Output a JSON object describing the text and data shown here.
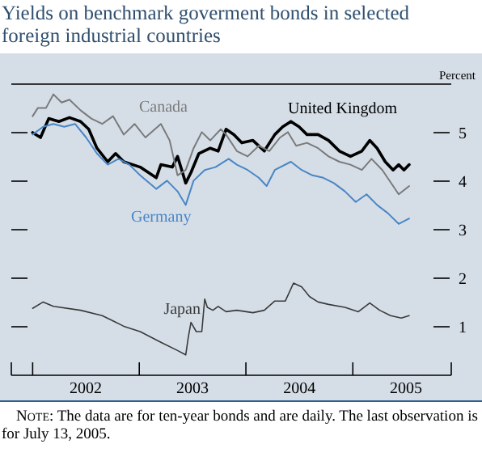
{
  "chart_data": {
    "type": "line",
    "title": "Yields on benchmark goverment bonds in selected foreign industrial countries",
    "ylabel": "Percent",
    "annotations": [
      "Note: The data are for ten-year bonds and are daily. The last observation is for July 13, 2005."
    ],
    "xlim": [
      "2001-10-20",
      "2005-12-04"
    ],
    "xticks": [
      {
        "value": "2002-01-01",
        "label": null
      },
      {
        "value": "2002-07-02",
        "label": "2002"
      },
      {
        "value": "2003-01-01",
        "label": null
      },
      {
        "value": "2003-07-02",
        "label": "2003"
      },
      {
        "value": "2004-01-01",
        "label": null
      },
      {
        "value": "2004-07-02",
        "label": "2004"
      },
      {
        "value": "2005-01-01",
        "label": null
      },
      {
        "value": "2005-07-02",
        "label": "2005"
      }
    ],
    "ylim": [
      0,
      6
    ],
    "yticks": [
      1,
      2,
      3,
      4,
      5
    ],
    "grid": false,
    "legend": false,
    "marker": "none",
    "line_style": "solid",
    "series": [
      {
        "name": "United Kingdom",
        "color": "#000000",
        "x": [
          "2002-01-01",
          "2002-01-28",
          "2002-02-25",
          "2002-04-01",
          "2002-05-07",
          "2002-06-14",
          "2002-07-12",
          "2002-08-09",
          "2002-09-15",
          "2002-10-12",
          "2002-11-09",
          "2003-01-04",
          "2003-02-28",
          "2003-03-16",
          "2003-04-24",
          "2003-05-12",
          "2003-06-09",
          "2003-06-27",
          "2003-07-24",
          "2003-09-01",
          "2003-09-28",
          "2003-10-25",
          "2003-11-21",
          "2003-12-18",
          "2004-01-25",
          "2004-03-04",
          "2004-04-09",
          "2004-05-06",
          "2004-06-03",
          "2004-07-01",
          "2004-07-28",
          "2004-09-04",
          "2004-10-10",
          "2004-11-16",
          "2004-12-24",
          "2005-02-01",
          "2005-02-28",
          "2005-03-25",
          "2005-04-22",
          "2005-05-19",
          "2005-06-07",
          "2005-06-25",
          "2005-07-13"
        ],
        "values": [
          5.0,
          4.9,
          5.29,
          5.23,
          5.31,
          5.23,
          5.07,
          4.68,
          4.4,
          4.57,
          4.4,
          4.29,
          4.07,
          4.34,
          4.29,
          4.51,
          3.96,
          4.18,
          4.57,
          4.68,
          4.62,
          5.07,
          4.96,
          4.79,
          4.84,
          4.62,
          4.96,
          5.12,
          5.23,
          5.12,
          4.96,
          4.96,
          4.84,
          4.62,
          4.51,
          4.62,
          4.84,
          4.68,
          4.4,
          4.23,
          4.34,
          4.23,
          4.34
        ]
      },
      {
        "name": "Canada",
        "color": "#7a7a7a",
        "x": [
          "2002-01-01",
          "2002-01-19",
          "2002-02-16",
          "2002-03-13",
          "2002-04-10",
          "2002-05-07",
          "2002-06-14",
          "2002-07-21",
          "2002-08-27",
          "2002-10-03",
          "2002-11-09",
          "2002-12-16",
          "2003-01-22",
          "2003-03-16",
          "2003-04-15",
          "2003-05-12",
          "2003-06-09",
          "2003-07-06",
          "2003-08-03",
          "2003-09-01",
          "2003-10-07",
          "2003-10-25",
          "2003-12-01",
          "2004-01-07",
          "2004-02-14",
          "2004-03-21",
          "2004-04-27",
          "2004-05-24",
          "2004-06-21",
          "2004-07-28",
          "2004-09-04",
          "2004-10-10",
          "2004-11-16",
          "2004-12-24",
          "2005-02-01",
          "2005-03-06",
          "2005-04-12",
          "2005-05-19",
          "2005-06-07",
          "2005-07-13"
        ],
        "values": [
          5.34,
          5.51,
          5.51,
          5.79,
          5.62,
          5.68,
          5.46,
          5.29,
          5.18,
          5.34,
          4.96,
          5.18,
          4.9,
          5.18,
          4.84,
          4.12,
          4.23,
          4.68,
          5.01,
          4.84,
          5.07,
          4.96,
          4.62,
          4.51,
          4.73,
          4.62,
          4.9,
          5.01,
          4.73,
          4.79,
          4.68,
          4.51,
          4.4,
          4.34,
          4.23,
          4.46,
          4.23,
          3.9,
          3.73,
          3.9
        ]
      },
      {
        "name": "Germany",
        "color": "#4a86c5",
        "x": [
          "2002-01-01",
          "2002-02-06",
          "2002-03-13",
          "2002-04-19",
          "2002-05-26",
          "2002-07-03",
          "2002-08-09",
          "2002-09-15",
          "2002-10-22",
          "2002-11-28",
          "2003-01-04",
          "2003-02-28",
          "2003-04-06",
          "2003-05-12",
          "2003-06-09",
          "2003-07-06",
          "2003-08-13",
          "2003-09-19",
          "2003-11-03",
          "2003-12-01",
          "2004-01-07",
          "2004-02-14",
          "2004-03-12",
          "2004-04-09",
          "2004-06-03",
          "2004-07-10",
          "2004-08-16",
          "2004-09-22",
          "2004-10-28",
          "2004-12-05",
          "2005-01-11",
          "2005-02-17",
          "2005-03-25",
          "2005-05-01",
          "2005-06-07",
          "2005-07-13"
        ],
        "values": [
          4.96,
          5.12,
          5.18,
          5.12,
          5.18,
          4.9,
          4.57,
          4.34,
          4.46,
          4.34,
          4.12,
          3.84,
          4.01,
          3.79,
          3.51,
          4.01,
          4.23,
          4.29,
          4.46,
          4.34,
          4.23,
          4.07,
          3.9,
          4.23,
          4.4,
          4.23,
          4.12,
          4.07,
          3.96,
          3.79,
          3.57,
          3.73,
          3.51,
          3.34,
          3.12,
          3.23
        ]
      },
      {
        "name": "Japan",
        "color": "#3a3a3a",
        "x": [
          "2002-01-01",
          "2002-02-06",
          "2002-03-13",
          "2002-06-14",
          "2002-08-27",
          "2002-10-03",
          "2002-11-09",
          "2003-01-04",
          "2003-03-16",
          "2003-05-12",
          "2003-06-09",
          "2003-06-18",
          "2003-06-27",
          "2003-07-15",
          "2003-08-03",
          "2003-08-13",
          "2003-08-22",
          "2003-09-10",
          "2003-09-28",
          "2003-10-25",
          "2003-12-01",
          "2004-01-25",
          "2004-03-04",
          "2004-04-09",
          "2004-05-15",
          "2004-06-12",
          "2004-07-10",
          "2004-08-06",
          "2004-09-04",
          "2004-10-10",
          "2004-12-05",
          "2005-01-20",
          "2005-02-28",
          "2005-04-03",
          "2005-05-10",
          "2005-06-16",
          "2005-07-13"
        ],
        "values": [
          1.38,
          1.51,
          1.42,
          1.34,
          1.23,
          1.12,
          1.01,
          0.9,
          0.68,
          0.51,
          0.42,
          0.79,
          1.09,
          0.9,
          0.9,
          1.57,
          1.4,
          1.34,
          1.42,
          1.31,
          1.34,
          1.29,
          1.34,
          1.53,
          1.53,
          1.9,
          1.82,
          1.62,
          1.51,
          1.46,
          1.4,
          1.31,
          1.49,
          1.34,
          1.23,
          1.18,
          1.23
        ]
      }
    ]
  }
}
